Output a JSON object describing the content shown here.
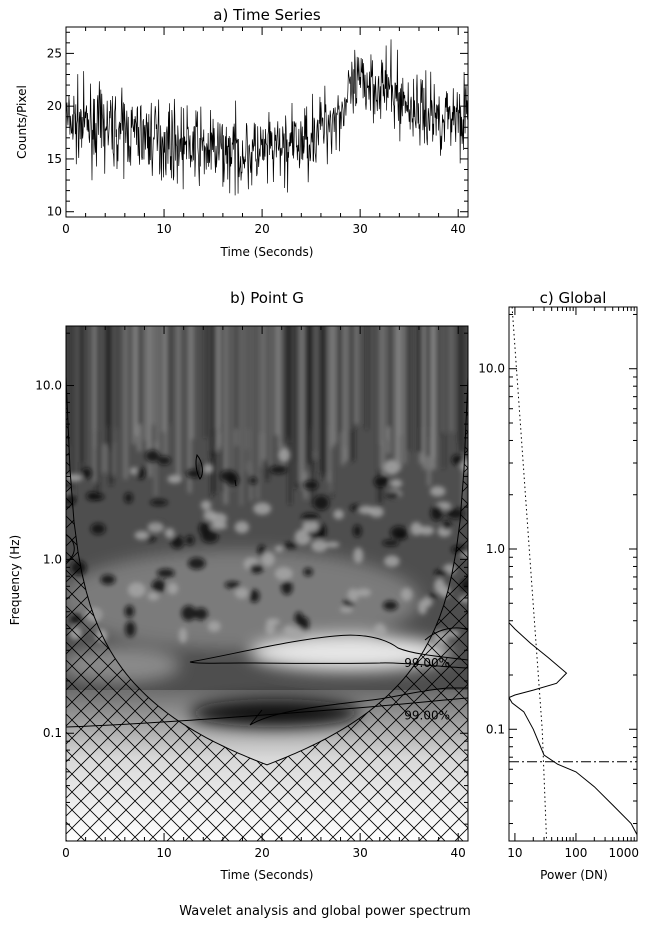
{
  "caption": "Wavelet analysis and global power spectrum",
  "chart_data": [
    {
      "panel": "a",
      "type": "line",
      "title": "a) Time Series",
      "xlabel": "Time (Seconds)",
      "ylabel": "Counts/Pixel",
      "xlim": [
        0,
        41
      ],
      "ylim": [
        9.5,
        27.5
      ],
      "xticks": [
        "0",
        "10",
        "20",
        "30",
        "40"
      ],
      "yticks": [
        "10",
        "15",
        "20",
        "25"
      ],
      "grid": false,
      "trend": {
        "x": [
          0,
          5,
          10,
          15,
          20,
          24,
          26,
          28,
          29,
          30,
          31,
          33,
          35,
          38,
          41
        ],
        "y": [
          18.5,
          17.8,
          16.8,
          15.8,
          15.5,
          16.5,
          18.0,
          19.5,
          21.0,
          22.0,
          22.5,
          21.5,
          20.0,
          19.0,
          19.5
        ]
      },
      "noise_amplitude": 2.4,
      "sample_count": 820,
      "color": "#000000"
    },
    {
      "panel": "b",
      "type": "heatmap",
      "title": "b) Point G",
      "xlabel": "Time (Seconds)",
      "ylabel": "Frequency (Hz)",
      "xlim": [
        0,
        41
      ],
      "yscale": "log",
      "ylim": [
        0.024,
        22
      ],
      "xticks": [
        "0",
        "10",
        "20",
        "30",
        "40"
      ],
      "yticks": [
        "0.1",
        "1.0",
        "10.0"
      ],
      "contour_labels": [
        {
          "text": "99.00%",
          "x": 34.5,
          "y": 0.24
        },
        {
          "text": "99.00%",
          "x": 34.5,
          "y": 0.12
        }
      ],
      "cone_of_influence": "hatched",
      "colormap": "grayscale"
    },
    {
      "panel": "c",
      "type": "line",
      "title": "c) Global",
      "xlabel": "Power (DN)",
      "xscale": "log",
      "xlim": [
        8,
        1000
      ],
      "yscale": "log",
      "ylim": [
        0.024,
        22
      ],
      "xticks": [
        "10",
        "100",
        "1000"
      ],
      "series": [
        {
          "style": "solid",
          "points": [
            [
              8,
              0.39
            ],
            [
              10,
              0.36
            ],
            [
              18,
              0.3
            ],
            [
              35,
              0.25
            ],
            [
              70,
              0.205
            ],
            [
              48,
              0.18
            ],
            [
              20,
              0.165
            ],
            [
              10,
              0.155
            ],
            [
              8,
              0.15
            ],
            [
              9,
              0.14
            ],
            [
              14,
              0.125
            ],
            [
              20,
              0.1
            ],
            [
              30,
              0.072
            ],
            [
              50,
              0.064
            ],
            [
              100,
              0.058
            ],
            [
              200,
              0.048
            ],
            [
              400,
              0.038
            ],
            [
              800,
              0.03
            ],
            [
              1000,
              0.026
            ]
          ]
        },
        {
          "style": "dotted",
          "points": [
            [
              9,
              22
            ],
            [
              18,
              0.8
            ],
            [
              28,
              0.1
            ],
            [
              33,
              0.024
            ]
          ]
        },
        {
          "style": "dash-dot",
          "points": [
            [
              8,
              0.066
            ],
            [
              1000,
              0.066
            ]
          ]
        }
      ]
    }
  ]
}
